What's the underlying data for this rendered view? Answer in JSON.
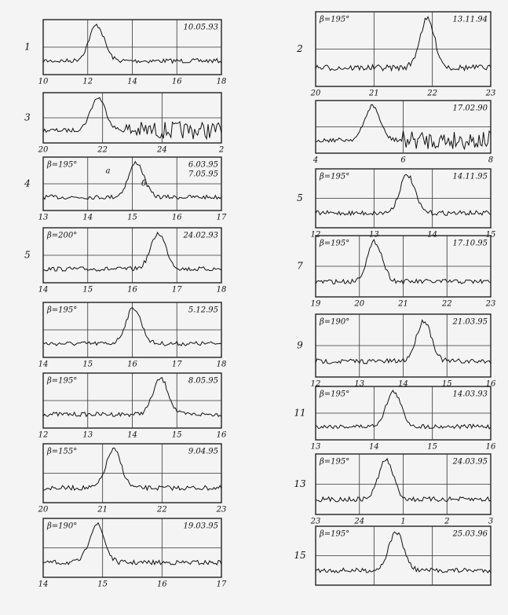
{
  "left": [
    {
      "number": "1",
      "date": "10.05.93",
      "xticks": [
        "10",
        "12",
        "14",
        "16",
        "18"
      ]
    },
    {
      "number": "3",
      "xticks": [
        "20",
        "22",
        "24",
        "2"
      ]
    },
    {
      "number": "4",
      "beta": "β=195°",
      "date": "6.03.95",
      "date2": "7.05.95",
      "labels": [
        "a",
        "б"
      ],
      "xticks": [
        "13",
        "14",
        "15",
        "16",
        "17"
      ]
    },
    {
      "number": "5",
      "beta": "β=200°",
      "date": "24.02.93",
      "xticks": [
        "14",
        "15",
        "16",
        "17",
        "18"
      ]
    },
    {
      "beta": "β=195°",
      "date": "5.12.95",
      "xticks": [
        "14",
        "15",
        "16",
        "17",
        "18"
      ]
    },
    {
      "beta": "β=195°",
      "date": "8.05.95",
      "xticks": [
        "12",
        "13",
        "14",
        "15",
        "16"
      ]
    },
    {
      "beta": "β=155°",
      "date": "9.04.95",
      "xticks": [
        "20",
        "21",
        "22",
        "23"
      ]
    },
    {
      "beta": "β=190°",
      "date": "19.03.95",
      "xticks": [
        "14",
        "15",
        "16",
        "17"
      ]
    }
  ],
  "right": [
    {
      "number": "2",
      "beta": "β=195°",
      "date": "13.11.94",
      "xticks": [
        "20",
        "21",
        "22",
        "23"
      ]
    },
    {
      "date": "17.02.90",
      "xticks": [
        "4",
        "6",
        "8"
      ]
    },
    {
      "number": "5",
      "beta": "β=195°",
      "date": "14.11.95",
      "xticks": [
        "12",
        "13",
        "14",
        "15"
      ]
    },
    {
      "number": "7",
      "beta": "β=195°",
      "date": "17.10.95",
      "xticks": [
        "19",
        "20",
        "21",
        "22",
        "23"
      ]
    },
    {
      "number": "9",
      "beta": "β=190°",
      "date": "21.03.95",
      "xticks": [
        "12",
        "13",
        "14",
        "15",
        "16"
      ]
    },
    {
      "number": "11",
      "beta": "β=195°",
      "date": "14.03.93",
      "xticks": [
        "13",
        "14",
        "15",
        "16"
      ]
    },
    {
      "number": "13",
      "beta": "β=195°",
      "date": "24.03.95",
      "xticks": [
        "23",
        "24",
        "1",
        "2",
        "3"
      ]
    },
    {
      "number": "15",
      "beta": "β=195°",
      "date": "25.03.96",
      "xticks": []
    }
  ]
}
